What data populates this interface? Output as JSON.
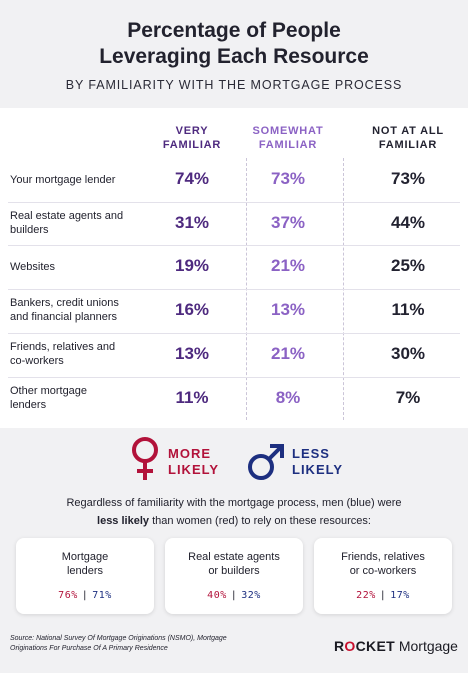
{
  "title_line1": "Percentage of People",
  "title_line2": "Leveraging Each Resource",
  "subtitle": "BY FAMILIARITY WITH THE MORTGAGE PROCESS",
  "colors": {
    "very": "#4e2a7f",
    "somewhat": "#8b62c4",
    "not": "#222230",
    "women": "#b2123a",
    "men": "#1d2f80"
  },
  "chart_data": {
    "type": "table",
    "columns": [
      {
        "line1": "VERY",
        "line2": "FAMILIAR"
      },
      {
        "line1": "SOMEWHAT",
        "line2": "FAMILIAR"
      },
      {
        "line1": "NOT AT ALL",
        "line2": "FAMILIAR"
      }
    ],
    "rows": [
      {
        "line1": "Your mortgage lender",
        "line2": "",
        "values": [
          "74%",
          "73%",
          "73%"
        ]
      },
      {
        "line1": "Real estate agents and",
        "line2": "builders",
        "values": [
          "31%",
          "37%",
          "44%"
        ]
      },
      {
        "line1": "Websites",
        "line2": "",
        "values": [
          "19%",
          "21%",
          "25%"
        ]
      },
      {
        "line1": "Bankers, credit unions",
        "line2": "and financial planners",
        "values": [
          "16%",
          "13%",
          "11%"
        ]
      },
      {
        "line1": "Friends, relatives and",
        "line2": "co-workers",
        "values": [
          "13%",
          "21%",
          "30%"
        ]
      },
      {
        "line1": "Other mortgage",
        "line2": "lenders",
        "values": [
          "11%",
          "8%",
          "7%"
        ]
      }
    ]
  },
  "gender": {
    "women": {
      "line1": "MORE",
      "line2": "LIKELY"
    },
    "men": {
      "line1": "LESS",
      "line2": "LIKELY"
    }
  },
  "note": {
    "line1": "Regardless of familiarity with the mortgage process, men (blue) were",
    "bold": "less likely",
    "rest": " than women (red) to rely on these resources:"
  },
  "cards": [
    {
      "line1": "Mortgage",
      "line2": "lenders",
      "women": "76%",
      "men": "71%"
    },
    {
      "line1": "Real estate agents",
      "line2": "or builders",
      "women": "40%",
      "men": "32%"
    },
    {
      "line1": "Friends, relatives",
      "line2": "or co-workers",
      "women": "22%",
      "men": "17%"
    }
  ],
  "card_separator": "|",
  "source": {
    "line1": "Source: National Survey Of Mortgage Originations (NSMO), Mortgage",
    "line2": "Originations For Purchase Of A Primary Residence"
  },
  "logo": {
    "r": "R",
    "o": "O",
    "cket": "CKET",
    "mortgage": " Mortgage"
  }
}
